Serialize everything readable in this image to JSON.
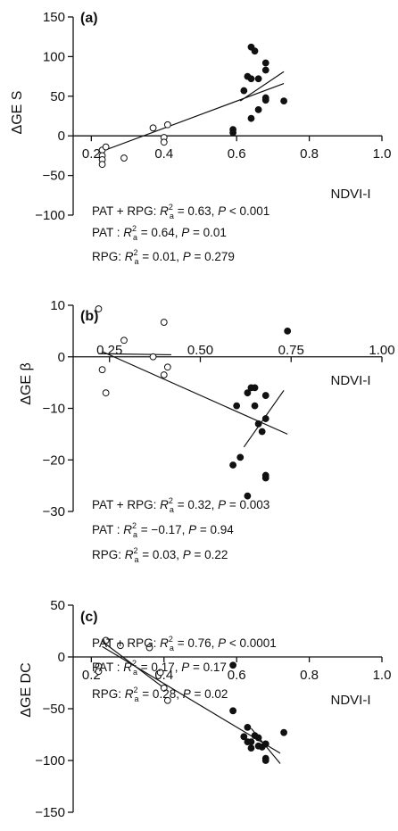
{
  "chart_data": [
    {
      "type": "scatter",
      "panel_label": "(a)",
      "ylabel": "ΔGE S",
      "xlabel": "NDVI-I",
      "x_ticks": [
        "0.2",
        "0.4",
        "0.6",
        "0.8",
        "1.0"
      ],
      "x_tick_values": [
        0.2,
        0.4,
        0.6,
        0.8,
        1.0
      ],
      "y_ticks": [
        "150",
        "100",
        "50",
        "0",
        "−50",
        "−100"
      ],
      "y_tick_values": [
        150,
        100,
        50,
        0,
        -50,
        -100
      ],
      "xlim": [
        0.15,
        1.0
      ],
      "ylim": [
        -100,
        150
      ],
      "series": [
        {
          "name": "PAT",
          "marker": "open-circle",
          "points": [
            [
              0.23,
              -18
            ],
            [
              0.24,
              -14
            ],
            [
              0.23,
              -25
            ],
            [
              0.23,
              -30
            ],
            [
              0.23,
              -36
            ],
            [
              0.29,
              -28
            ],
            [
              0.37,
              10
            ],
            [
              0.41,
              14
            ],
            [
              0.4,
              -2
            ],
            [
              0.4,
              -8
            ]
          ]
        },
        {
          "name": "RPG",
          "marker": "filled-circle",
          "points": [
            [
              0.64,
              112
            ],
            [
              0.65,
              107
            ],
            [
              0.68,
              92
            ],
            [
              0.68,
              83
            ],
            [
              0.63,
              75
            ],
            [
              0.64,
              72
            ],
            [
              0.66,
              72
            ],
            [
              0.62,
              57
            ],
            [
              0.68,
              45
            ],
            [
              0.68,
              48
            ],
            [
              0.73,
              44
            ],
            [
              0.66,
              33
            ],
            [
              0.64,
              22
            ],
            [
              0.59,
              8
            ],
            [
              0.59,
              4
            ]
          ]
        }
      ],
      "fits": [
        {
          "x": [
            0.22,
            0.73
          ],
          "y": [
            -21,
            66
          ]
        },
        {
          "x": [
            0.61,
            0.73
          ],
          "y": [
            44,
            81
          ]
        }
      ],
      "stats": [
        {
          "prefix": "PAT + RPG: ",
          "r": "R",
          "sup": "2",
          "sub": "a",
          "rest": " = 0.63, ",
          "p": "P",
          "tail": " < 0.001"
        },
        {
          "prefix": "PAT : ",
          "r": "R",
          "sup": "2",
          "sub": "a",
          "rest": " = 0.64, ",
          "p": "P",
          "tail": " = 0.01"
        },
        {
          "prefix": "RPG: ",
          "r": "R",
          "sup": "2",
          "sub": "a",
          "rest": " = 0.01, ",
          "p": "P",
          "tail": " = 0.279"
        }
      ]
    },
    {
      "type": "scatter",
      "panel_label": "(b)",
      "ylabel": "ΔGE β",
      "xlabel": "NDVI-I",
      "x_ticks": [
        "0.25",
        "0.50",
        "0.75",
        "1.00"
      ],
      "x_tick_values": [
        0.25,
        0.5,
        0.75,
        1.0
      ],
      "y_ticks": [
        "10",
        "0",
        "−10",
        "−20",
        "−30"
      ],
      "y_tick_values": [
        10,
        0,
        -10,
        -20,
        -30
      ],
      "xlim": [
        0.15,
        1.0
      ],
      "ylim": [
        -30,
        10
      ],
      "series": [
        {
          "name": "PAT",
          "marker": "open-circle",
          "points": [
            [
              0.22,
              9.3
            ],
            [
              0.29,
              3.2
            ],
            [
              0.4,
              6.7
            ],
            [
              0.37,
              0
            ],
            [
              0.23,
              -2.5
            ],
            [
              0.24,
              -7
            ],
            [
              0.4,
              -3.5
            ],
            [
              0.41,
              -2
            ]
          ]
        },
        {
          "name": "RPG",
          "marker": "filled-circle",
          "points": [
            [
              0.74,
              5
            ],
            [
              0.64,
              -6
            ],
            [
              0.65,
              -6
            ],
            [
              0.63,
              -7
            ],
            [
              0.68,
              -7.5
            ],
            [
              0.6,
              -9.5
            ],
            [
              0.65,
              -9.5
            ],
            [
              0.66,
              -13
            ],
            [
              0.68,
              -12
            ],
            [
              0.67,
              -14.5
            ],
            [
              0.61,
              -19.5
            ],
            [
              0.68,
              -23
            ],
            [
              0.68,
              -23.5
            ],
            [
              0.59,
              -21
            ],
            [
              0.63,
              -27
            ]
          ]
        }
      ],
      "fits": [
        {
          "x": [
            0.23,
            0.74
          ],
          "y": [
            1,
            -15
          ]
        },
        {
          "x": [
            0.22,
            0.42
          ],
          "y": [
            0.6,
            0.4
          ]
        },
        {
          "x": [
            0.62,
            0.73
          ],
          "y": [
            -17.5,
            -6.5
          ]
        }
      ],
      "stats": [
        {
          "prefix": "PAT + RPG: ",
          "r": "R",
          "sup": "2",
          "sub": "a",
          "rest": " = 0.32, ",
          "p": "P",
          "tail": " = 0.003"
        },
        {
          "prefix": "PAT : ",
          "r": "R",
          "sup": "2",
          "sub": "a",
          "rest": " = −0.17, ",
          "p": "P",
          "tail": " = 0.94"
        },
        {
          "prefix": "RPG: ",
          "r": "R",
          "sup": "2",
          "sub": "a",
          "rest": " = 0.03, ",
          "p": "P",
          "tail": " = 0.22"
        }
      ]
    },
    {
      "type": "scatter",
      "panel_label": "(c)",
      "ylabel": "ΔGE DC",
      "xlabel": "NDVI-I",
      "x_ticks": [
        "0.2",
        "0.4",
        "0.6",
        "0.8",
        "1.0"
      ],
      "x_tick_values": [
        0.2,
        0.4,
        0.6,
        0.8,
        1.0
      ],
      "y_ticks": [
        "50",
        "0",
        "−50",
        "−100",
        "−150"
      ],
      "y_tick_values": [
        50,
        0,
        -50,
        -100,
        -150
      ],
      "xlim": [
        0.15,
        1.0
      ],
      "ylim": [
        -150,
        50
      ],
      "series": [
        {
          "name": "PAT",
          "marker": "open-circle",
          "points": [
            [
              0.24,
              16
            ],
            [
              0.28,
              11
            ],
            [
              0.36,
              9
            ],
            [
              0.22,
              -9
            ],
            [
              0.22,
              -14
            ],
            [
              0.39,
              -15
            ],
            [
              0.4,
              -30
            ],
            [
              0.41,
              -42
            ]
          ]
        },
        {
          "name": "RPG",
          "marker": "filled-circle",
          "points": [
            [
              0.59,
              -8
            ],
            [
              0.59,
              -52
            ],
            [
              0.63,
              -68
            ],
            [
              0.62,
              -77
            ],
            [
              0.63,
              -82
            ],
            [
              0.64,
              -82
            ],
            [
              0.65,
              -76
            ],
            [
              0.66,
              -78
            ],
            [
              0.66,
              -86
            ],
            [
              0.68,
              -84
            ],
            [
              0.67,
              -87
            ],
            [
              0.73,
              -73
            ],
            [
              0.68,
              -98
            ],
            [
              0.68,
              -100
            ],
            [
              0.64,
              -88
            ]
          ]
        }
      ],
      "fits": [
        {
          "x": [
            0.23,
            0.72
          ],
          "y": [
            10,
            -93
          ]
        },
        {
          "x": [
            0.23,
            0.4
          ],
          "y": [
            15,
            -30
          ]
        },
        {
          "x": [
            0.64,
            0.72
          ],
          "y": [
            -69,
            -103
          ]
        }
      ],
      "stats": [
        {
          "prefix": "PAT + RPG: ",
          "r": "R",
          "sup": "2",
          "sub": "a",
          "rest": " = 0.76, ",
          "p": "P",
          "tail": " < 0.0001"
        },
        {
          "prefix": "PAT : ",
          "r": "R",
          "sup": "2",
          "sub": "a",
          "rest": " = 0.17, ",
          "p": "P",
          "tail": " = 0.17"
        },
        {
          "prefix": "RPG: ",
          "r": "R",
          "sup": "2",
          "sub": "a",
          "rest": " = 0.28, ",
          "p": "P",
          "tail": " = 0.02"
        }
      ]
    }
  ]
}
